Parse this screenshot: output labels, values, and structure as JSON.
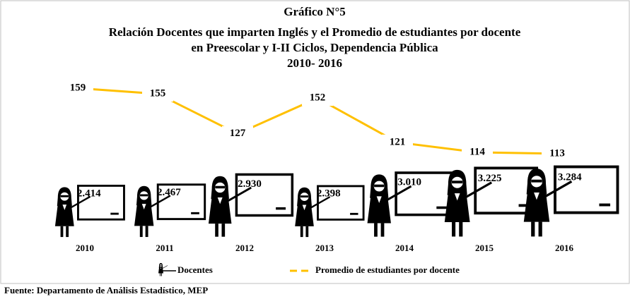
{
  "chart_data": {
    "type": "combo",
    "title": "Gráfico N°5",
    "subtitle": [
      "Relación Docentes que imparten Inglés y el Promedio de estudiantes  por docente",
      "en Preescolar y I-II  Ciclos, Dependencia Pública",
      "2010- 2016"
    ],
    "categories": [
      "2010",
      "2011",
      "2012",
      "2013",
      "2014",
      "2015",
      "2016"
    ],
    "series": [
      {
        "name": "Docentes",
        "type": "pictograph",
        "color": "#000000",
        "values": [
          2414,
          2467,
          2930,
          2398,
          3010,
          3225,
          3284
        ],
        "value_labels": [
          "2.414",
          "2.467",
          "2.930",
          "2.398",
          "3.010",
          "3.225",
          "3.284"
        ]
      },
      {
        "name": "Promedio de estudiantes por docente",
        "type": "line",
        "color": "#ffc000",
        "values": [
          159,
          155,
          127,
          152,
          121,
          114,
          113
        ]
      }
    ],
    "legend": "bottom",
    "source": "Fuente: Departamento de Análisis Estadístico, MEP"
  }
}
